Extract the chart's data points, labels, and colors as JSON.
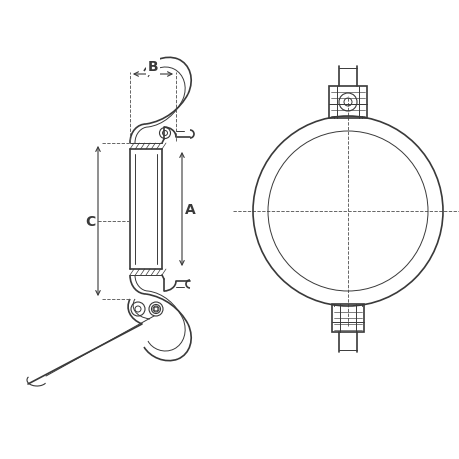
{
  "bg_color": "#ffffff",
  "line_color": "#3a3a3a",
  "dim_color": "#3a3a3a",
  "dashed_color": "#5a5a5a",
  "figsize": [
    4.6,
    4.6
  ],
  "dpi": 100,
  "label_A": "A",
  "label_B": "B",
  "label_C": "C",
  "lw_main": 1.2,
  "lw_thin": 0.7,
  "lw_dim": 0.8
}
